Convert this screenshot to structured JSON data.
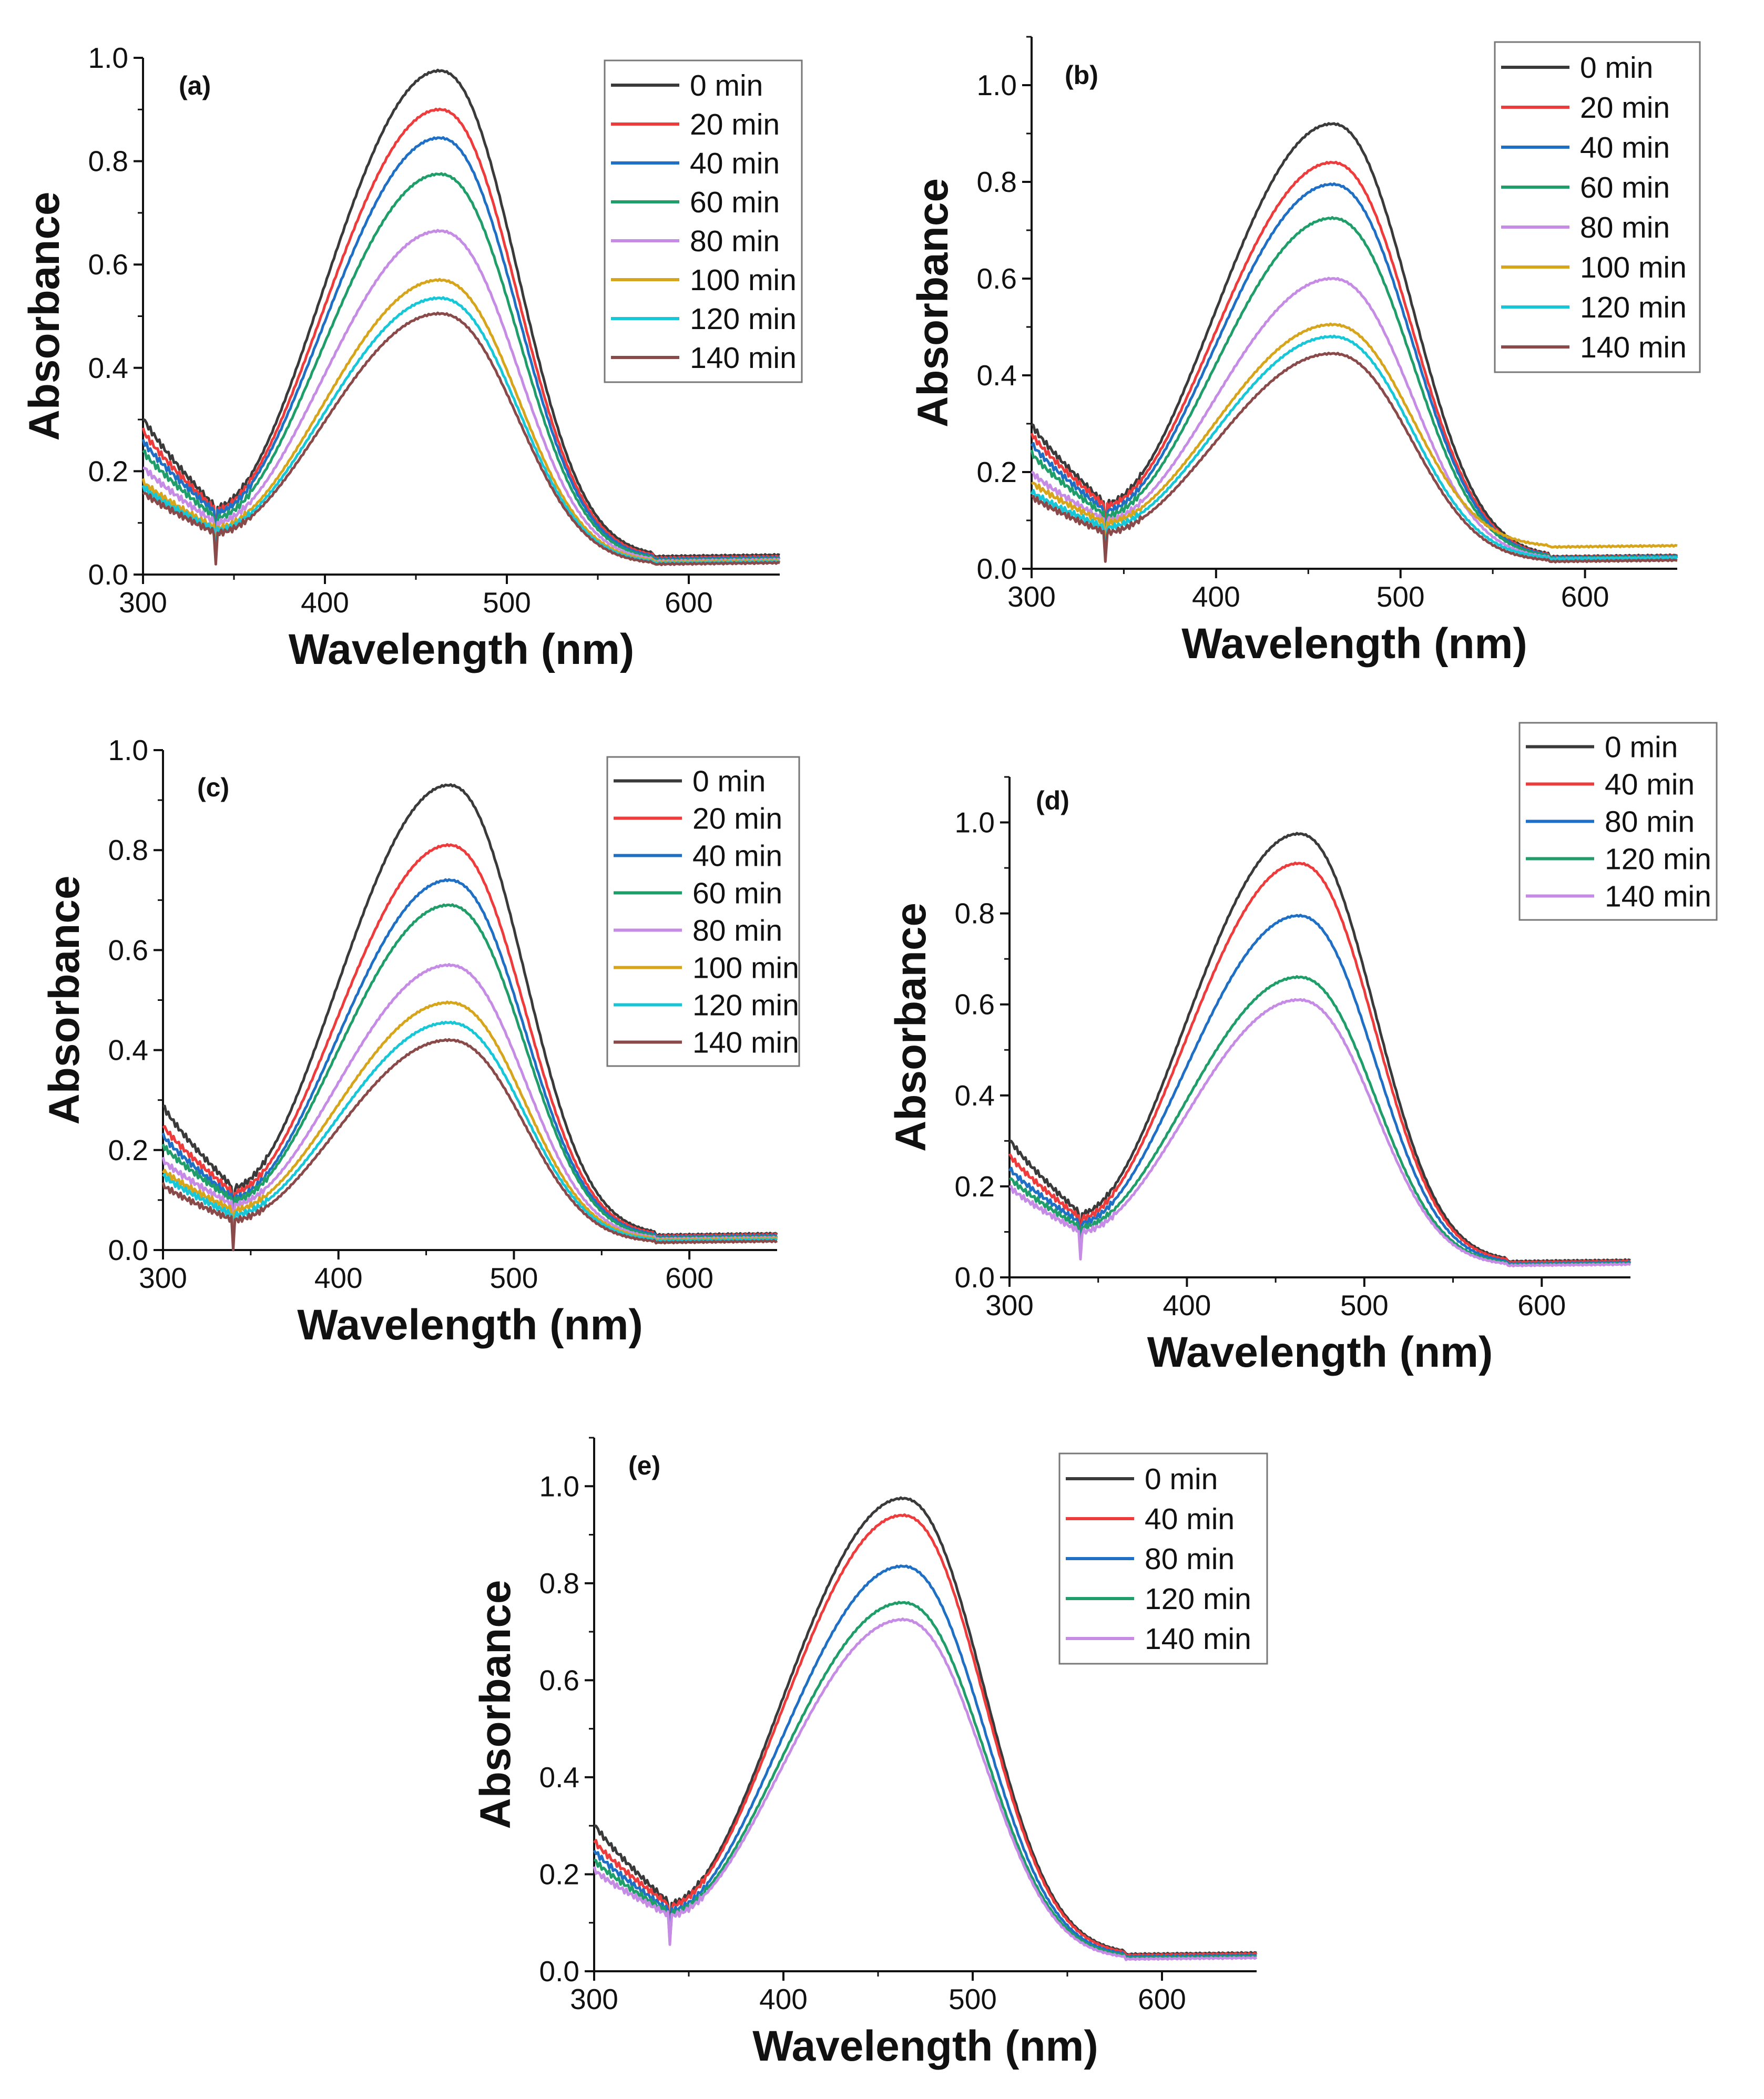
{
  "figure": {
    "panel_count": 5,
    "series_colors": {
      "0 min": "#3a3a3a",
      "20 min": "#ee3b3b",
      "40 min": "#1f6fc5",
      "60 min": "#1f9e6a",
      "80 min": "#c58be5",
      "100 min": "#d6a51c",
      "120 min": "#17c7d8",
      "140 min": "#8b4a4a"
    }
  },
  "chart_data": [
    {
      "type": "line",
      "panel_label": "(a)",
      "xlabel": "Wavelength (nm)",
      "ylabel": "Absorbance",
      "xlim": [
        300,
        650
      ],
      "ylim": [
        0.0,
        1.0
      ],
      "xticks": [
        300,
        400,
        500,
        600
      ],
      "yticks": [
        0.0,
        0.2,
        0.4,
        0.6,
        0.8,
        1.0
      ],
      "ytick_labels": [
        "0.0",
        "0.2",
        "0.4",
        "0.6",
        "0.8",
        "1.0"
      ],
      "legend_position": "top-right",
      "series": [
        {
          "name": "0 min",
          "color": "#3a3a3a",
          "peak": 0.975,
          "start": 0.305,
          "valley": 0.13,
          "tail": 0.035
        },
        {
          "name": "20 min",
          "color": "#ee3b3b",
          "peak": 0.9,
          "start": 0.28,
          "valley": 0.125,
          "tail": 0.032
        },
        {
          "name": "40 min",
          "color": "#1f6fc5",
          "peak": 0.845,
          "start": 0.26,
          "valley": 0.12,
          "tail": 0.03
        },
        {
          "name": "60 min",
          "color": "#1f9e6a",
          "peak": 0.775,
          "start": 0.24,
          "valley": 0.11,
          "tail": 0.028
        },
        {
          "name": "80 min",
          "color": "#c58be5",
          "peak": 0.665,
          "start": 0.21,
          "valley": 0.1,
          "tail": 0.026
        },
        {
          "name": "100 min",
          "color": "#d6a51c",
          "peak": 0.57,
          "start": 0.18,
          "valley": 0.09,
          "tail": 0.024
        },
        {
          "name": "120 min",
          "color": "#17c7d8",
          "peak": 0.535,
          "start": 0.17,
          "valley": 0.085,
          "tail": 0.022
        },
        {
          "name": "140 min",
          "color": "#8b4a4a",
          "peak": 0.505,
          "start": 0.16,
          "valley": 0.08,
          "tail": 0.02
        }
      ]
    },
    {
      "type": "line",
      "panel_label": "(b)",
      "xlabel": "Wavelength (nm)",
      "ylabel": "Absorbance",
      "xlim": [
        300,
        650
      ],
      "ylim": [
        0.0,
        1.1
      ],
      "xticks": [
        300,
        400,
        500,
        600
      ],
      "yticks": [
        0.0,
        0.2,
        0.4,
        0.6,
        0.8,
        1.0
      ],
      "ytick_labels": [
        "0.0",
        "0.2",
        "0.4",
        "0.6",
        "0.8",
        "1.0"
      ],
      "legend_position": "top-right",
      "series": [
        {
          "name": "0 min",
          "color": "#3a3a3a",
          "peak": 0.92,
          "start": 0.3,
          "valley": 0.135,
          "tail": 0.025
        },
        {
          "name": "20 min",
          "color": "#ee3b3b",
          "peak": 0.84,
          "start": 0.28,
          "valley": 0.13,
          "tail": 0.024
        },
        {
          "name": "40 min",
          "color": "#1f6fc5",
          "peak": 0.795,
          "start": 0.26,
          "valley": 0.12,
          "tail": 0.023
        },
        {
          "name": "60 min",
          "color": "#1f9e6a",
          "peak": 0.725,
          "start": 0.24,
          "valley": 0.11,
          "tail": 0.022
        },
        {
          "name": "80 min",
          "color": "#c58be5",
          "peak": 0.6,
          "start": 0.2,
          "valley": 0.1,
          "tail": 0.02
        },
        {
          "name": "100 min",
          "color": "#d6a51c",
          "peak": 0.505,
          "start": 0.18,
          "valley": 0.095,
          "tail": 0.045
        },
        {
          "name": "120 min",
          "color": "#17c7d8",
          "peak": 0.48,
          "start": 0.16,
          "valley": 0.085,
          "tail": 0.02
        },
        {
          "name": "140 min",
          "color": "#8b4a4a",
          "peak": 0.445,
          "start": 0.15,
          "valley": 0.075,
          "tail": 0.015
        }
      ]
    },
    {
      "type": "line",
      "panel_label": "(c)",
      "xlabel": "Wavelength (nm)",
      "ylabel": "Absorbance",
      "xlim": [
        300,
        650
      ],
      "ylim": [
        0.0,
        1.0
      ],
      "xticks": [
        300,
        400,
        500,
        600
      ],
      "yticks": [
        0.0,
        0.2,
        0.4,
        0.6,
        0.8,
        1.0
      ],
      "ytick_labels": [
        "0.0",
        "0.2",
        "0.4",
        "0.6",
        "0.8",
        "1.0"
      ],
      "legend_position": "top-right",
      "series": [
        {
          "name": "0 min",
          "color": "#3a3a3a",
          "peak": 0.93,
          "start": 0.29,
          "valley": 0.125,
          "tail": 0.03
        },
        {
          "name": "20 min",
          "color": "#ee3b3b",
          "peak": 0.81,
          "start": 0.25,
          "valley": 0.115,
          "tail": 0.028
        },
        {
          "name": "40 min",
          "color": "#1f6fc5",
          "peak": 0.74,
          "start": 0.23,
          "valley": 0.105,
          "tail": 0.026
        },
        {
          "name": "60 min",
          "color": "#1f9e6a",
          "peak": 0.69,
          "start": 0.21,
          "valley": 0.1,
          "tail": 0.024
        },
        {
          "name": "80 min",
          "color": "#c58be5",
          "peak": 0.57,
          "start": 0.18,
          "valley": 0.09,
          "tail": 0.022
        },
        {
          "name": "100 min",
          "color": "#d6a51c",
          "peak": 0.495,
          "start": 0.16,
          "valley": 0.08,
          "tail": 0.02
        },
        {
          "name": "120 min",
          "color": "#17c7d8",
          "peak": 0.455,
          "start": 0.15,
          "valley": 0.07,
          "tail": 0.018
        },
        {
          "name": "140 min",
          "color": "#8b4a4a",
          "peak": 0.42,
          "start": 0.13,
          "valley": 0.06,
          "tail": 0.015
        }
      ]
    },
    {
      "type": "line",
      "panel_label": "(d)",
      "xlabel": "Wavelength (nm)",
      "ylabel": "Absorbance",
      "xlim": [
        300,
        650
      ],
      "ylim": [
        0.0,
        1.1
      ],
      "xticks": [
        300,
        400,
        500,
        600
      ],
      "yticks": [
        0.0,
        0.2,
        0.4,
        0.6,
        0.8,
        1.0
      ],
      "ytick_labels": [
        "0.0",
        "0.2",
        "0.4",
        "0.6",
        "0.8",
        "1.0"
      ],
      "legend_position": "top-right",
      "series": [
        {
          "name": "0 min",
          "color": "#3a3a3a",
          "peak": 0.975,
          "start": 0.305,
          "valley": 0.14,
          "tail": 0.035
        },
        {
          "name": "40 min",
          "color": "#ee3b3b",
          "peak": 0.91,
          "start": 0.27,
          "valley": 0.13,
          "tail": 0.033
        },
        {
          "name": "80 min",
          "color": "#1f6fc5",
          "peak": 0.795,
          "start": 0.24,
          "valley": 0.12,
          "tail": 0.03
        },
        {
          "name": "120 min",
          "color": "#1f9e6a",
          "peak": 0.66,
          "start": 0.22,
          "valley": 0.11,
          "tail": 0.028
        },
        {
          "name": "140 min",
          "color": "#c58be5",
          "peak": 0.61,
          "start": 0.2,
          "valley": 0.1,
          "tail": 0.026
        }
      ]
    },
    {
      "type": "line",
      "panel_label": "(e)",
      "xlabel": "Wavelength (nm)",
      "ylabel": "Absorbance",
      "xlim": [
        300,
        650
      ],
      "ylim": [
        0.0,
        1.1
      ],
      "xticks": [
        300,
        400,
        500,
        600
      ],
      "yticks": [
        0.0,
        0.2,
        0.4,
        0.6,
        0.8,
        1.0
      ],
      "ytick_labels": [
        "0.0",
        "0.2",
        "0.4",
        "0.6",
        "0.8",
        "1.0"
      ],
      "legend_position": "top-right",
      "series": [
        {
          "name": "0 min",
          "color": "#3a3a3a",
          "peak": 0.975,
          "start": 0.305,
          "valley": 0.14,
          "tail": 0.035
        },
        {
          "name": "40 min",
          "color": "#ee3b3b",
          "peak": 0.94,
          "start": 0.27,
          "valley": 0.135,
          "tail": 0.033
        },
        {
          "name": "80 min",
          "color": "#1f6fc5",
          "peak": 0.835,
          "start": 0.25,
          "valley": 0.125,
          "tail": 0.03
        },
        {
          "name": "120 min",
          "color": "#1f9e6a",
          "peak": 0.76,
          "start": 0.23,
          "valley": 0.12,
          "tail": 0.028
        },
        {
          "name": "140 min",
          "color": "#c58be5",
          "peak": 0.725,
          "start": 0.21,
          "valley": 0.115,
          "tail": 0.025
        }
      ]
    }
  ]
}
